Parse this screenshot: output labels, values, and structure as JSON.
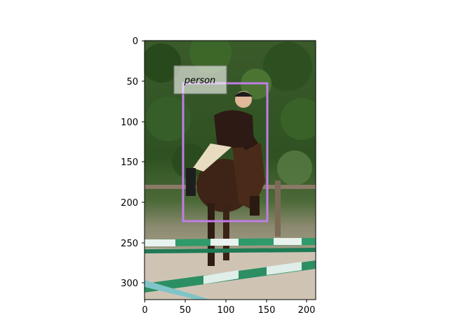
{
  "figure": {
    "image_description": "Rider on a dark brown horse jumping over green and white striped show-jumping poles, trees in background",
    "x_axis": {
      "ticks": [
        "0",
        "50",
        "100",
        "150",
        "200"
      ],
      "range": [
        0,
        211
      ]
    },
    "y_axis": {
      "ticks": [
        "0",
        "50",
        "100",
        "150",
        "200",
        "250",
        "300"
      ],
      "range": [
        320,
        0
      ],
      "inverted": true
    },
    "detections": [
      {
        "label": "person",
        "x0": 48,
        "y0": 53,
        "x1": 152,
        "y1": 224,
        "color": "#c07ee6"
      }
    ]
  }
}
